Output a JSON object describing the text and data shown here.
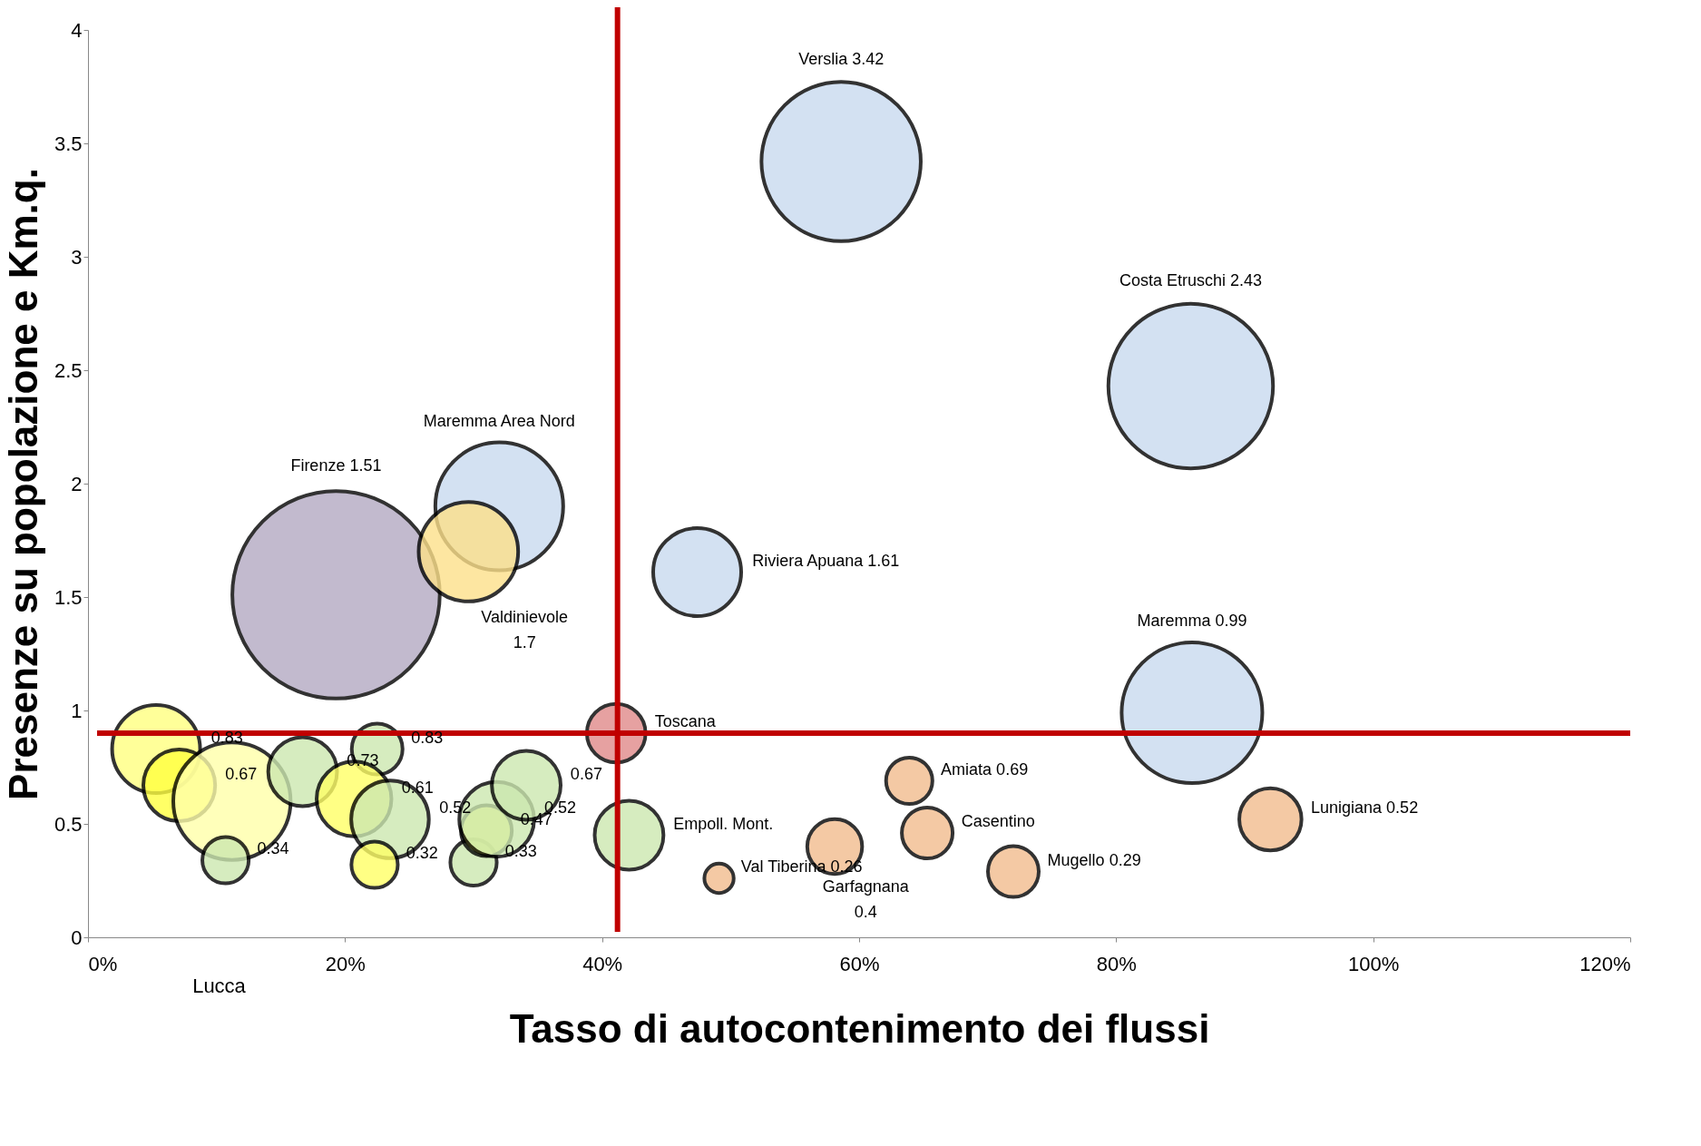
{
  "chart_data": {
    "type": "bubble",
    "xlabel": "Tasso di autocontenimento dei flussi",
    "ylabel": "Presenze  su popolazione e Km.q.",
    "x": [
      58.6,
      85.8,
      32.0,
      19.3,
      29.6,
      47.4,
      85.9,
      41.1,
      63.9,
      65.3,
      58.1,
      72.0,
      49.1,
      92.0,
      42.1,
      5.3,
      7.1,
      11.2,
      10.7,
      22.5,
      16.7,
      20.7,
      23.5,
      22.3,
      30.0,
      31.0,
      31.8,
      34.1
    ],
    "values": [
      3.42,
      2.43,
      1.9,
      1.51,
      1.7,
      1.61,
      0.99,
      0.9,
      0.69,
      0.46,
      0.4,
      0.29,
      0.26,
      0.52,
      0.45,
      0.83,
      0.67,
      0.6,
      0.34,
      0.83,
      0.73,
      0.61,
      0.52,
      0.32,
      0.33,
      0.47,
      0.52,
      0.67
    ],
    "sizes": [
      0.59,
      0.63,
      0.38,
      1,
      0.23,
      0.18,
      0.46,
      0.08,
      0.05,
      0.06,
      0.07,
      0.06,
      0.02,
      0.09,
      0.11,
      0.18,
      0.12,
      0.32,
      0.05,
      0.06,
      0.11,
      0.13,
      0.14,
      0.05,
      0.05,
      0.06,
      0.13,
      0.11
    ],
    "colors": [
      "#c9daf0",
      "#c9daf0",
      "#c9daf0",
      "#b3a9c2",
      "#fde08a",
      "#c9daf0",
      "#c9daf0",
      "#e08a8a",
      "#f2bc8e",
      "#f2bc8e",
      "#f2bc8e",
      "#f2bc8e",
      "#f2bc8e",
      "#f2bc8e",
      "#cce8b0",
      "#ffff80",
      "#ffff40",
      "#ffffaa",
      "#cce8b0",
      "#cce8b0",
      "#cce8b0",
      "#ffff66",
      "#cce8b0",
      "#ffff66",
      "#cce8b0",
      "#ffff66",
      "#cce8b0",
      "#cce8b0"
    ],
    "value_labels": [
      "Verslia 3.42",
      "Costa Etruschi 2.43",
      "Maremma Area Nord",
      "Firenze 1.51",
      "Valdinievole\n1.7",
      "Riviera Apuana 1.61",
      "Maremma 0.99",
      "Toscana",
      "Amiata 0.69",
      "Casentino",
      "Garfagnana\n0.4",
      "Mugello 0.29",
      "Val Tiberina 0.26",
      "Lunigiana 0.52",
      "Empoll. Mont.",
      "0.83",
      "0.67",
      null,
      "0.34",
      "0.83",
      "0.73",
      "0.61",
      "0.52",
      "0.32",
      "0.33",
      "0.47",
      "0.52",
      "0.67"
    ],
    "xlim": [
      0,
      120
    ],
    "xticks": [
      {
        "value": 0,
        "label": "0%"
      },
      {
        "value": 20,
        "label": "20%"
      },
      {
        "value": 40,
        "label": "40%"
      },
      {
        "value": 60,
        "label": "60%"
      },
      {
        "value": 80,
        "label": "80%"
      },
      {
        "value": 100,
        "label": "100%"
      },
      {
        "value": 120,
        "label": "120%"
      }
    ],
    "ylim": [
      0,
      4
    ],
    "yticks": [
      0,
      0.5,
      1,
      1.5,
      2,
      2.5,
      3,
      3.5,
      4
    ],
    "ref_lines": [
      {
        "axis": "y",
        "value": 0.9,
        "color": "#c00000"
      },
      {
        "axis": "x",
        "value": 41.2,
        "color": "#c00000"
      }
    ],
    "annotations": [
      "Lucca"
    ],
    "marker": "circle",
    "grid": false,
    "legend": false
  }
}
